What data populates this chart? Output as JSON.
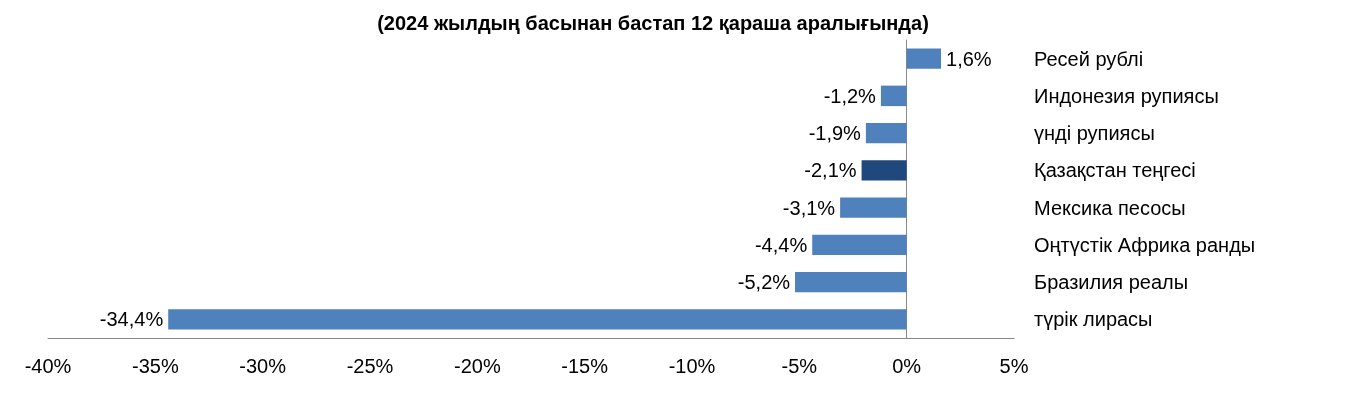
{
  "chart_data": {
    "type": "bar",
    "orientation": "horizontal",
    "title": "(2024 жылдың басынан бастап 12 қараша аралығында)",
    "categories": [
      "Ресей рублі",
      "Индонезия рупиясы",
      "үнді рупиясы",
      "Қазақстан теңгесі",
      "Мексика песосы",
      "Оңтүстік Африка ранды",
      "Бразилия реалы",
      "түрік лирасы"
    ],
    "values": [
      1.6,
      -1.2,
      -1.9,
      -2.1,
      -3.1,
      -4.4,
      -5.2,
      -34.4
    ],
    "value_labels": [
      "1,6%",
      "-1,2%",
      "-1,9%",
      "-2,1%",
      "-3,1%",
      "-4,4%",
      "-5,2%",
      "-34,4%"
    ],
    "colors": [
      "#4f81bd",
      "#4f81bd",
      "#4f81bd",
      "#1f497d",
      "#4f81bd",
      "#4f81bd",
      "#4f81bd",
      "#4f81bd"
    ],
    "xlim": [
      -40,
      5
    ],
    "xticks": [
      {
        "value": -40,
        "label": "-40%"
      },
      {
        "value": -35,
        "label": "-35%"
      },
      {
        "value": -30,
        "label": "-30%"
      },
      {
        "value": -25,
        "label": "-25%"
      },
      {
        "value": -20,
        "label": "-20%"
      },
      {
        "value": -15,
        "label": "-15%"
      },
      {
        "value": -10,
        "label": "-10%"
      },
      {
        "value": -5,
        "label": "-5%"
      },
      {
        "value": 0,
        "label": "0%"
      },
      {
        "value": 5,
        "label": "5%"
      }
    ],
    "xlabel": null
  }
}
